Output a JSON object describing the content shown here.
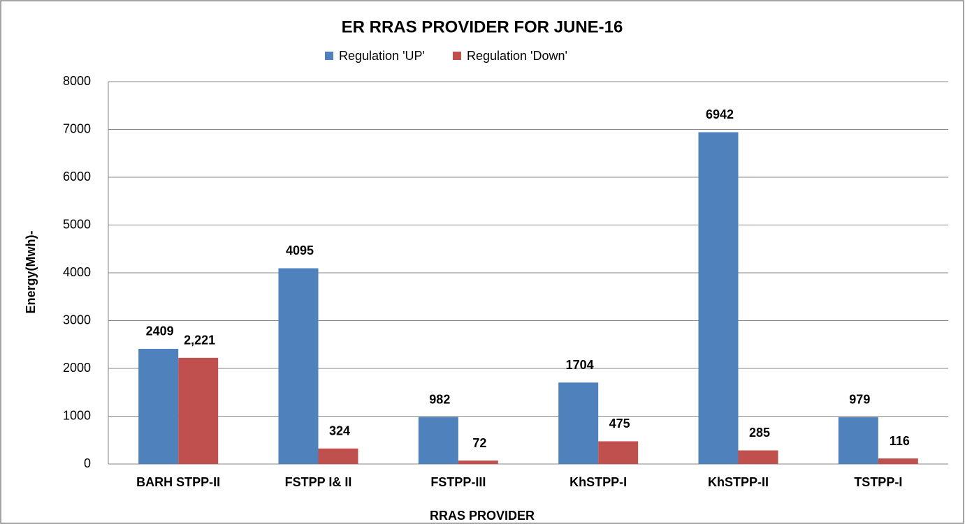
{
  "chart_data": {
    "type": "bar",
    "title": "ER RRAS PROVIDER FOR JUNE-16",
    "x_label": "RRAS PROVIDER",
    "y_label": "Energy(Mwh)-",
    "categories": [
      "BARH STPP-II",
      "FSTPP I& II",
      "FSTPP-III",
      "KhSTPP-I",
      "KhSTPP-II",
      "TSTPP-I"
    ],
    "series": [
      {
        "name": "Regulation 'UP'",
        "color": "#4f81bd",
        "values": [
          2409,
          4095,
          982,
          1704,
          6942,
          979
        ]
      },
      {
        "name": "Regulation 'Down'",
        "color": "#c0504d",
        "values": [
          2221,
          324,
          72,
          475,
          285,
          116
        ],
        "value_labels": [
          "2,221",
          "324",
          "72",
          "475",
          "285",
          "116"
        ]
      }
    ],
    "ylim": [
      0,
      8000
    ],
    "yticks": [
      0,
      1000,
      2000,
      3000,
      4000,
      5000,
      6000,
      7000,
      8000
    ],
    "grid": true,
    "legend": "top"
  }
}
